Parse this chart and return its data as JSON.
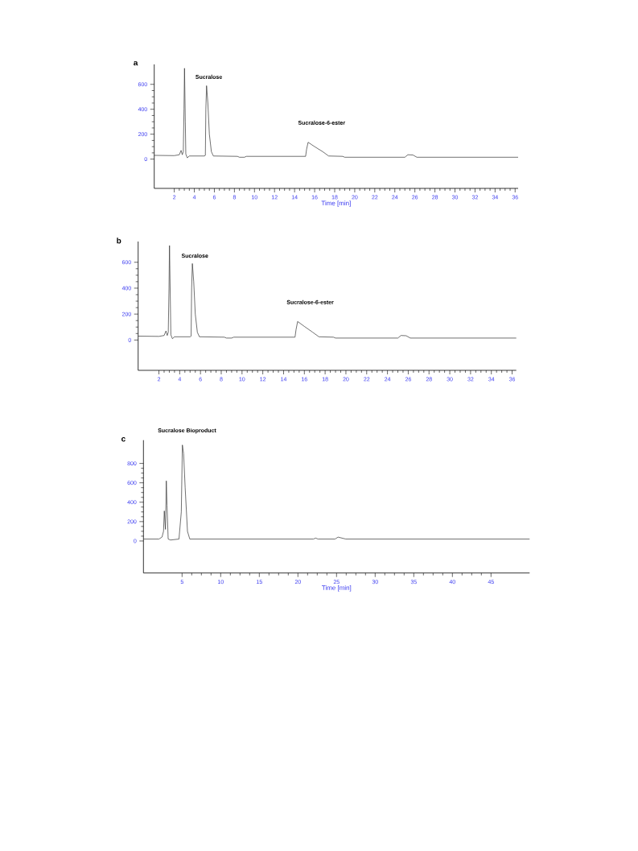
{
  "chart_data": [
    {
      "type": "line",
      "title": "a",
      "xlabel": "Time [min]",
      "xlim": [
        0,
        36.3
      ],
      "ylim": [
        -235,
        760
      ],
      "xticks": [
        2,
        4,
        6,
        8,
        10,
        12,
        14,
        16,
        18,
        20,
        22,
        24,
        26,
        28,
        30,
        32,
        34,
        36
      ],
      "yticks": [
        0,
        200,
        400,
        600
      ],
      "color": "#333333",
      "x": [
        0,
        2,
        2.5,
        2.68,
        2.8,
        2.9,
        2.97,
        3.02,
        3.1,
        3.15,
        3.3,
        3.5,
        5.0,
        5.1,
        5.15,
        5.22,
        5.35,
        5.5,
        5.7,
        5.9,
        8.3,
        8.5,
        9.0,
        9.2,
        15.1,
        15.2,
        15.35,
        16,
        16.8,
        17.4,
        18.8,
        19,
        25,
        25.3,
        25.8,
        26.2,
        36.3
      ],
      "values": [
        30,
        28,
        35,
        70,
        35,
        60,
        400,
        729,
        300,
        40,
        10,
        25,
        25,
        30,
        400,
        589,
        450,
        200,
        60,
        25,
        22,
        15,
        15,
        22,
        22,
        80,
        135,
        100,
        60,
        25,
        22,
        15,
        15,
        35,
        33,
        15,
        15
      ],
      "annotations": [
        "Sucralose",
        "Sucralose-6-ester"
      ]
    },
    {
      "type": "line",
      "title": "b",
      "xlim": [
        0,
        36.4
      ],
      "ylim": [
        -234,
        760
      ],
      "xticks": [
        2,
        4,
        6,
        8,
        10,
        12,
        14,
        16,
        18,
        20,
        22,
        24,
        26,
        28,
        30,
        32,
        34,
        36
      ],
      "yticks": [
        0,
        200,
        400,
        600
      ],
      "color": "#333333",
      "x": [
        0,
        2,
        2.5,
        2.68,
        2.8,
        2.9,
        2.97,
        3.02,
        3.1,
        3.15,
        3.3,
        3.5,
        5.0,
        5.1,
        5.15,
        5.22,
        5.35,
        5.5,
        5.7,
        5.9,
        8.3,
        8.5,
        9.0,
        9.2,
        15.1,
        15.2,
        15.35,
        16,
        16.8,
        17.4,
        18.8,
        19,
        25,
        25.3,
        25.8,
        26.2,
        36.4
      ],
      "values": [
        30,
        28,
        35,
        70,
        35,
        60,
        400,
        729,
        300,
        40,
        10,
        25,
        25,
        30,
        400,
        590,
        450,
        200,
        60,
        25,
        22,
        15,
        15,
        22,
        22,
        80,
        143,
        105,
        60,
        25,
        22,
        15,
        15,
        35,
        33,
        15,
        15
      ],
      "annotations": [
        "Sucralose",
        "Sucralose-6-ester"
      ]
    },
    {
      "type": "line",
      "title": "c",
      "xlabel": "Time [min]",
      "xlim": [
        0,
        50
      ],
      "ylim": [
        -330,
        1040
      ],
      "xticks": [
        5,
        10,
        15,
        20,
        25,
        30,
        35,
        40,
        45
      ],
      "yticks": [
        0,
        200,
        400,
        600,
        800
      ],
      "color": "#333333",
      "x": [
        0,
        2,
        2.4,
        2.6,
        2.7,
        2.85,
        2.96,
        3.05,
        3.2,
        3.5,
        4.6,
        4.9,
        5.04,
        5.2,
        5.4,
        5.7,
        6.0,
        22.0,
        22.3,
        22.6,
        24.8,
        25.2,
        25.7,
        26.2,
        50
      ],
      "values": [
        20,
        20,
        40,
        100,
        310,
        120,
        620,
        370,
        20,
        10,
        20,
        300,
        990,
        900,
        550,
        100,
        20,
        20,
        30,
        20,
        20,
        40,
        30,
        20,
        20
      ],
      "annotations": [
        "Sucralose Bioproduct"
      ]
    }
  ]
}
